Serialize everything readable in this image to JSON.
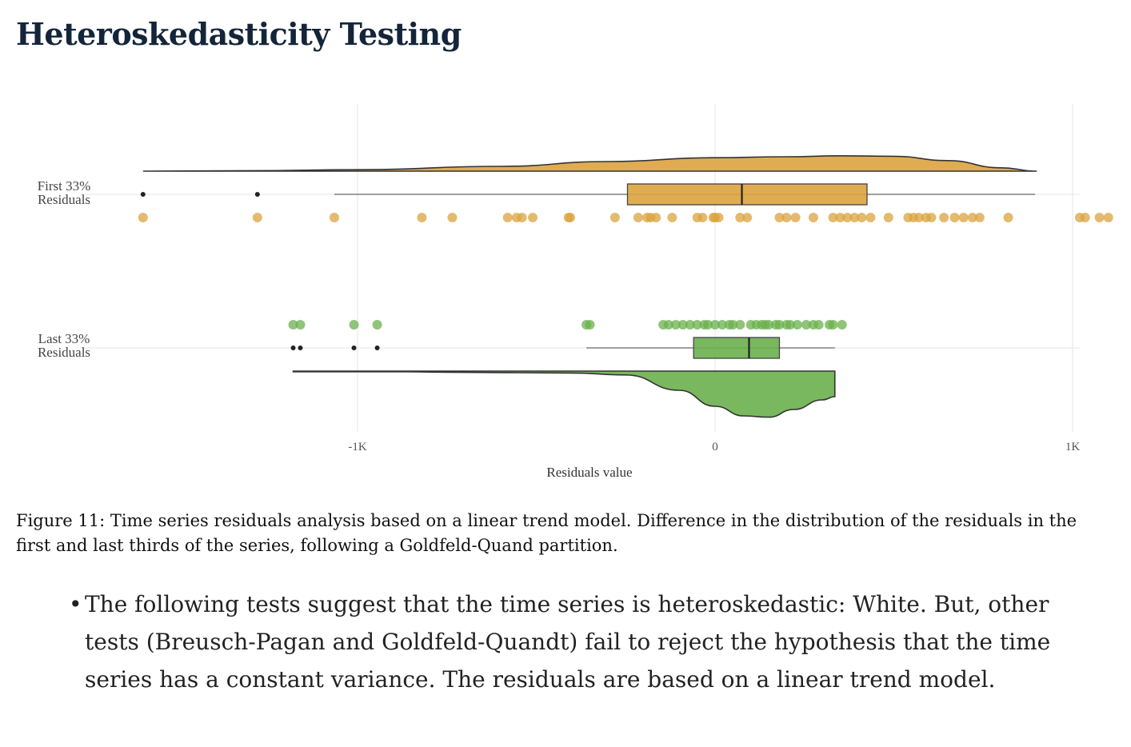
{
  "page": {
    "title": "Heteroskedasticity Testing",
    "caption": "Figure 11: Time series residuals analysis based on a linear trend model. Difference in the distribution of the residuals in the first and last thirds of the series, following a Goldfeld-Quand partition.",
    "bullets": [
      "The following tests suggest that the time series is heteroskedastic: White. But, other tests (Breusch-Pagan and Goldfeld-Quandt) fail to reject the hypothesis that the time series has a constant variance. The residuals are based on a linear trend model."
    ],
    "bullet_glyph": "•"
  },
  "chart_data": {
    "type": "raincloud",
    "xlabel": "Residuals value",
    "xlim": [
      -1.0,
      1.0
    ],
    "xticks": [
      {
        "value": -1.0,
        "label": "-1K"
      },
      {
        "value": 0.0,
        "label": "0"
      },
      {
        "value": 1.0,
        "label": "1K"
      }
    ],
    "grid": true,
    "series": [
      {
        "name": "First 33% Residuals",
        "label_lines": [
          "First 33%",
          "Residuals"
        ],
        "color": "#dba33e",
        "points": [
          -1.6,
          -1.28,
          -1.065,
          -0.82,
          -0.735,
          -0.58,
          -0.555,
          -0.54,
          -0.51,
          -0.41,
          -0.405,
          -0.28,
          -0.215,
          -0.19,
          -0.18,
          -0.165,
          -0.12,
          -0.05,
          -0.035,
          -0.005,
          0.0,
          0.01,
          0.07,
          0.09,
          0.18,
          0.2,
          0.225,
          0.275,
          0.33,
          0.35,
          0.37,
          0.39,
          0.41,
          0.435,
          0.485,
          0.54,
          0.555,
          0.57,
          0.59,
          0.605,
          0.64,
          0.67,
          0.695,
          0.72,
          0.74,
          0.82,
          1.02,
          1.035,
          1.075,
          1.1
        ],
        "box": {
          "whisker_low": -1.065,
          "q1": -0.245,
          "median": 0.075,
          "q3": 0.425,
          "whisker_high": 0.895
        },
        "outliers": [
          -1.6,
          -1.28
        ],
        "density": [
          [
            -1.6,
            0.0
          ],
          [
            -1.3,
            0.01
          ],
          [
            -1.0,
            0.03
          ],
          [
            -0.6,
            0.1
          ],
          [
            -0.3,
            0.2
          ],
          [
            0.0,
            0.28
          ],
          [
            0.2,
            0.3
          ],
          [
            0.35,
            0.32
          ],
          [
            0.5,
            0.31
          ],
          [
            0.65,
            0.22
          ],
          [
            0.8,
            0.07
          ],
          [
            0.9,
            0.0
          ]
        ]
      },
      {
        "name": "Last 33% Residuals",
        "label_lines": [
          "Last 33%",
          "Residuals"
        ],
        "color": "#6ab04c",
        "points": [
          -1.18,
          -1.16,
          -1.01,
          -0.945,
          -0.36,
          -0.35,
          -0.145,
          -0.13,
          -0.11,
          -0.09,
          -0.07,
          -0.05,
          -0.03,
          -0.02,
          0.0,
          0.02,
          0.04,
          0.05,
          0.07,
          0.1,
          0.115,
          0.13,
          0.14,
          0.15,
          0.17,
          0.18,
          0.2,
          0.21,
          0.23,
          0.255,
          0.275,
          0.29,
          0.32,
          0.33,
          0.355
        ],
        "box": {
          "whisker_low": -0.36,
          "q1": -0.06,
          "median": 0.095,
          "q3": 0.18,
          "whisker_high": 0.335
        },
        "outliers": [
          -1.18,
          -1.16,
          -1.01,
          -0.945
        ],
        "density": [
          [
            -1.18,
            0.01
          ],
          [
            -0.9,
            0.01
          ],
          [
            -0.7,
            0.02
          ],
          [
            -0.4,
            0.03
          ],
          [
            -0.25,
            0.06
          ],
          [
            -0.1,
            0.3
          ],
          [
            0.0,
            0.55
          ],
          [
            0.08,
            0.7
          ],
          [
            0.15,
            0.72
          ],
          [
            0.22,
            0.6
          ],
          [
            0.3,
            0.45
          ],
          [
            0.335,
            0.4
          ]
        ]
      }
    ]
  }
}
